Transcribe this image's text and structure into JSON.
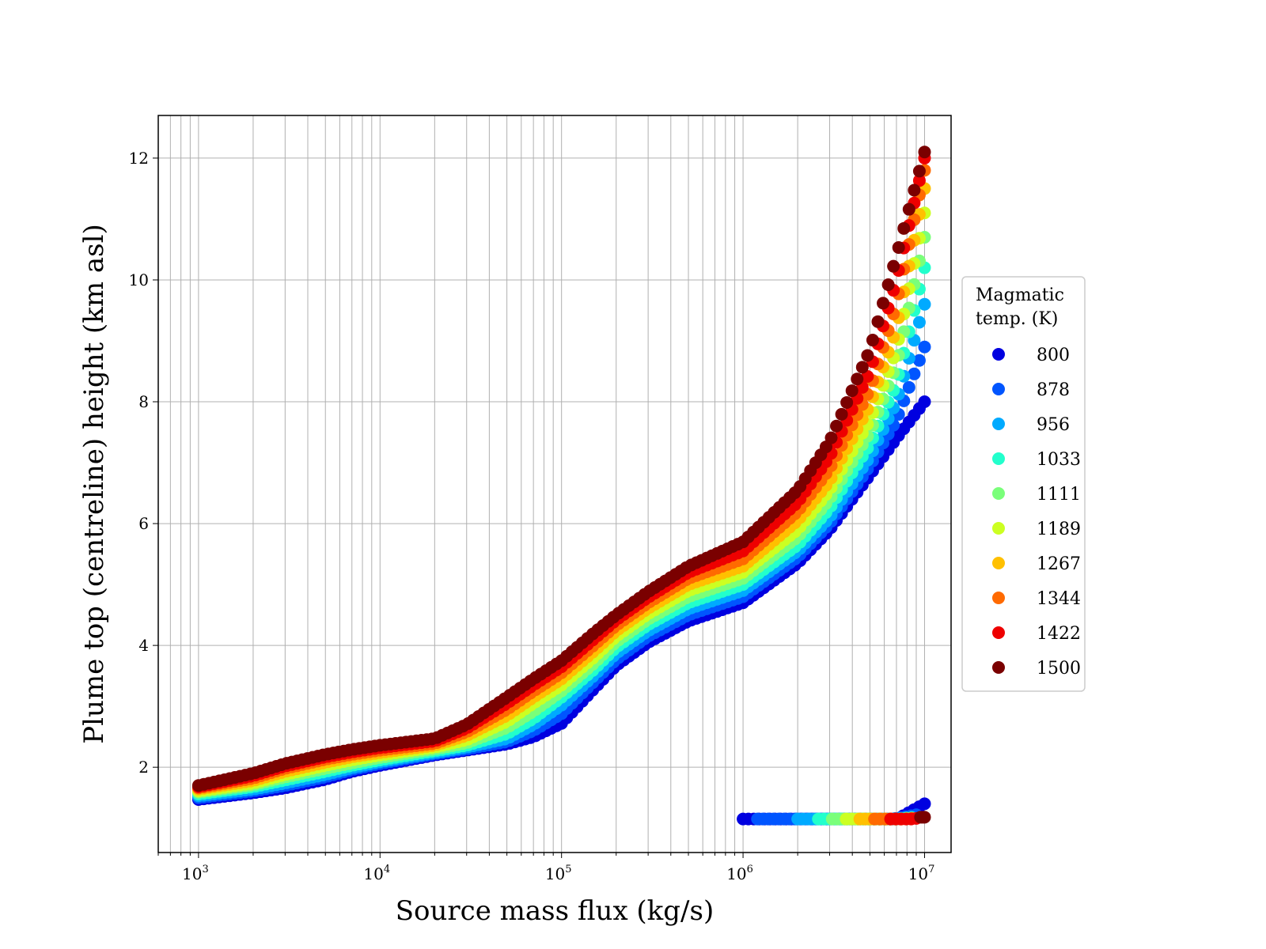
{
  "chart_data": {
    "type": "scatter",
    "title": "",
    "xlabel": "Source mass flux (kg/s)",
    "ylabel": "Plume top (centreline) height (km asl)",
    "xscale": "log",
    "xlim": [
      600,
      14000000
    ],
    "ylim": [
      0.6,
      12.7
    ],
    "grid": "on (major and minor)",
    "x_ticks": [
      {
        "base": "10",
        "exp": "3",
        "value": 1000
      },
      {
        "base": "10",
        "exp": "4",
        "value": 10000
      },
      {
        "base": "10",
        "exp": "5",
        "value": 100000
      },
      {
        "base": "10",
        "exp": "6",
        "value": 1000000
      },
      {
        "base": "10",
        "exp": "7",
        "value": 10000000
      }
    ],
    "y_ticks": [
      {
        "label": "2",
        "value": 2
      },
      {
        "label": "4",
        "value": 4
      },
      {
        "label": "6",
        "value": 6
      },
      {
        "label": "8",
        "value": 8
      },
      {
        "label": "10",
        "value": 10
      },
      {
        "label": "12",
        "value": 12
      }
    ],
    "legend": {
      "title_line1": "Magmatic",
      "title_line2": "temp. (K)",
      "placement": "right, outside plot"
    },
    "series": [
      {
        "name": "800",
        "color": "#0000e0",
        "curve": [
          [
            1000,
            1.47
          ],
          [
            2000,
            1.58
          ],
          [
            3000,
            1.66
          ],
          [
            5000,
            1.8
          ],
          [
            7000,
            1.93
          ],
          [
            10000,
            2.03
          ],
          [
            20000,
            2.2
          ],
          [
            30000,
            2.28
          ],
          [
            50000,
            2.38
          ],
          [
            70000,
            2.5
          ],
          [
            100000,
            2.72
          ],
          [
            150000,
            3.28
          ],
          [
            200000,
            3.67
          ],
          [
            300000,
            4.05
          ],
          [
            500000,
            4.4
          ],
          [
            1000000,
            4.7
          ],
          [
            2000000,
            5.35
          ],
          [
            3000000,
            5.9
          ],
          [
            5000000,
            6.8
          ],
          [
            7000000,
            7.4
          ],
          [
            10000000,
            8.0
          ]
        ],
        "low_branch": {
          "x_start": 1000000,
          "x_end": 10000000,
          "y": 1.15,
          "y_end": 1.4
        }
      },
      {
        "name": "878",
        "color": "#0055ff",
        "curve": [
          [
            1000,
            1.5
          ],
          [
            2000,
            1.61
          ],
          [
            3000,
            1.7
          ],
          [
            5000,
            1.84
          ],
          [
            7000,
            1.96
          ],
          [
            10000,
            2.06
          ],
          [
            20000,
            2.22
          ],
          [
            30000,
            2.3
          ],
          [
            50000,
            2.42
          ],
          [
            70000,
            2.6
          ],
          [
            100000,
            2.88
          ],
          [
            150000,
            3.4
          ],
          [
            200000,
            3.77
          ],
          [
            300000,
            4.15
          ],
          [
            500000,
            4.5
          ],
          [
            1000000,
            4.8
          ],
          [
            2000000,
            5.45
          ],
          [
            3000000,
            6.0
          ],
          [
            5000000,
            6.95
          ],
          [
            7000000,
            7.7
          ],
          [
            10000000,
            8.9
          ]
        ],
        "low_branch": {
          "x_start": 1200000,
          "x_end": 9000000,
          "y": 1.15,
          "y_end": 1.22
        }
      },
      {
        "name": "956",
        "color": "#00aaff",
        "curve": [
          [
            1000,
            1.53
          ],
          [
            2000,
            1.64
          ],
          [
            3000,
            1.74
          ],
          [
            5000,
            1.88
          ],
          [
            7000,
            1.99
          ],
          [
            10000,
            2.09
          ],
          [
            20000,
            2.24
          ],
          [
            30000,
            2.33
          ],
          [
            50000,
            2.47
          ],
          [
            70000,
            2.7
          ],
          [
            100000,
            3.02
          ],
          [
            150000,
            3.5
          ],
          [
            200000,
            3.87
          ],
          [
            300000,
            4.24
          ],
          [
            500000,
            4.6
          ],
          [
            1000000,
            4.9
          ],
          [
            2000000,
            5.55
          ],
          [
            3000000,
            6.1
          ],
          [
            5000000,
            7.1
          ],
          [
            7000000,
            8.0
          ],
          [
            10000000,
            9.6
          ]
        ],
        "low_branch": {
          "x_start": 2000000,
          "x_end": 8500000,
          "y": 1.15,
          "y_end": 1.18
        }
      },
      {
        "name": "1033",
        "color": "#22ffcc",
        "curve": [
          [
            1000,
            1.56
          ],
          [
            2000,
            1.68
          ],
          [
            3000,
            1.79
          ],
          [
            5000,
            1.93
          ],
          [
            7000,
            2.03
          ],
          [
            10000,
            2.12
          ],
          [
            20000,
            2.27
          ],
          [
            30000,
            2.36
          ],
          [
            50000,
            2.55
          ],
          [
            70000,
            2.8
          ],
          [
            100000,
            3.15
          ],
          [
            150000,
            3.6
          ],
          [
            200000,
            3.97
          ],
          [
            300000,
            4.34
          ],
          [
            500000,
            4.7
          ],
          [
            1000000,
            5.0
          ],
          [
            2000000,
            5.65
          ],
          [
            3000000,
            6.25
          ],
          [
            5000000,
            7.3
          ],
          [
            7000000,
            8.3
          ],
          [
            10000000,
            10.2
          ]
        ],
        "low_branch": {
          "x_start": 2600000,
          "x_end": 8500000,
          "y": 1.15,
          "y_end": 1.17
        }
      },
      {
        "name": "1111",
        "color": "#7aff7a",
        "curve": [
          [
            1000,
            1.59
          ],
          [
            2000,
            1.71
          ],
          [
            3000,
            1.84
          ],
          [
            5000,
            1.98
          ],
          [
            7000,
            2.07
          ],
          [
            10000,
            2.16
          ],
          [
            20000,
            2.3
          ],
          [
            30000,
            2.4
          ],
          [
            50000,
            2.65
          ],
          [
            70000,
            2.92
          ],
          [
            100000,
            3.25
          ],
          [
            150000,
            3.7
          ],
          [
            200000,
            4.06
          ],
          [
            300000,
            4.43
          ],
          [
            500000,
            4.8
          ],
          [
            1000000,
            5.1
          ],
          [
            2000000,
            5.78
          ],
          [
            3000000,
            6.4
          ],
          [
            5000000,
            7.5
          ],
          [
            7000000,
            8.6
          ],
          [
            10000000,
            10.7
          ]
        ],
        "low_branch": {
          "x_start": 3100000,
          "x_end": 8500000,
          "y": 1.15,
          "y_end": 1.16
        }
      },
      {
        "name": "1189",
        "color": "#ccff22",
        "curve": [
          [
            1000,
            1.61
          ],
          [
            2000,
            1.74
          ],
          [
            3000,
            1.88
          ],
          [
            5000,
            2.03
          ],
          [
            7000,
            2.12
          ],
          [
            10000,
            2.2
          ],
          [
            20000,
            2.33
          ],
          [
            30000,
            2.45
          ],
          [
            50000,
            2.75
          ],
          [
            70000,
            3.05
          ],
          [
            100000,
            3.35
          ],
          [
            150000,
            3.8
          ],
          [
            200000,
            4.15
          ],
          [
            300000,
            4.52
          ],
          [
            500000,
            4.9
          ],
          [
            1000000,
            5.2
          ],
          [
            2000000,
            5.9
          ],
          [
            3000000,
            6.55
          ],
          [
            5000000,
            7.7
          ],
          [
            7000000,
            8.85
          ],
          [
            10000000,
            11.1
          ]
        ],
        "low_branch": {
          "x_start": 3700000,
          "x_end": 8500000,
          "y": 1.15,
          "y_end": 1.16
        }
      },
      {
        "name": "1267",
        "color": "#ffc000",
        "curve": [
          [
            1000,
            1.64
          ],
          [
            2000,
            1.78
          ],
          [
            3000,
            1.93
          ],
          [
            5000,
            2.08
          ],
          [
            7000,
            2.17
          ],
          [
            10000,
            2.24
          ],
          [
            20000,
            2.36
          ],
          [
            30000,
            2.52
          ],
          [
            50000,
            2.85
          ],
          [
            70000,
            3.15
          ],
          [
            100000,
            3.45
          ],
          [
            150000,
            3.9
          ],
          [
            200000,
            4.24
          ],
          [
            300000,
            4.61
          ],
          [
            500000,
            5.0
          ],
          [
            1000000,
            5.3
          ],
          [
            2000000,
            6.05
          ],
          [
            3000000,
            6.7
          ],
          [
            5000000,
            7.95
          ],
          [
            7000000,
            9.2
          ],
          [
            10000000,
            11.5
          ]
        ],
        "low_branch": {
          "x_start": 4400000,
          "x_end": 8500000,
          "y": 1.15,
          "y_end": 1.16
        }
      },
      {
        "name": "1344",
        "color": "#ff6a00",
        "curve": [
          [
            1000,
            1.66
          ],
          [
            2000,
            1.82
          ],
          [
            3000,
            1.98
          ],
          [
            5000,
            2.13
          ],
          [
            7000,
            2.21
          ],
          [
            10000,
            2.28
          ],
          [
            20000,
            2.39
          ],
          [
            30000,
            2.58
          ],
          [
            50000,
            2.95
          ],
          [
            70000,
            3.25
          ],
          [
            100000,
            3.55
          ],
          [
            150000,
            4.0
          ],
          [
            200000,
            4.33
          ],
          [
            300000,
            4.7
          ],
          [
            500000,
            5.1
          ],
          [
            1000000,
            5.42
          ],
          [
            2000000,
            6.2
          ],
          [
            3000000,
            6.9
          ],
          [
            5000000,
            8.2
          ],
          [
            7000000,
            9.6
          ],
          [
            10000000,
            11.8
          ]
        ],
        "low_branch": {
          "x_start": 5300000,
          "x_end": 8500000,
          "y": 1.15,
          "y_end": 1.16
        }
      },
      {
        "name": "1422",
        "color": "#ee0000",
        "curve": [
          [
            1000,
            1.68
          ],
          [
            2000,
            1.86
          ],
          [
            3000,
            2.02
          ],
          [
            5000,
            2.17
          ],
          [
            7000,
            2.25
          ],
          [
            10000,
            2.32
          ],
          [
            20000,
            2.43
          ],
          [
            30000,
            2.64
          ],
          [
            50000,
            3.05
          ],
          [
            70000,
            3.35
          ],
          [
            100000,
            3.65
          ],
          [
            150000,
            4.1
          ],
          [
            200000,
            4.42
          ],
          [
            300000,
            4.79
          ],
          [
            500000,
            5.2
          ],
          [
            1000000,
            5.55
          ],
          [
            2000000,
            6.35
          ],
          [
            3000000,
            7.1
          ],
          [
            5000000,
            8.5
          ],
          [
            7000000,
            10.0
          ],
          [
            10000000,
            12.0
          ]
        ],
        "low_branch": {
          "x_start": 6500000,
          "x_end": 9000000,
          "y": 1.15,
          "y_end": 1.16
        }
      },
      {
        "name": "1500",
        "color": "#7a0000",
        "curve": [
          [
            1000,
            1.7
          ],
          [
            2000,
            1.9
          ],
          [
            3000,
            2.06
          ],
          [
            5000,
            2.21
          ],
          [
            7000,
            2.29
          ],
          [
            10000,
            2.36
          ],
          [
            20000,
            2.47
          ],
          [
            30000,
            2.7
          ],
          [
            50000,
            3.15
          ],
          [
            70000,
            3.45
          ],
          [
            100000,
            3.75
          ],
          [
            150000,
            4.2
          ],
          [
            200000,
            4.5
          ],
          [
            300000,
            4.88
          ],
          [
            500000,
            5.3
          ],
          [
            1000000,
            5.7
          ],
          [
            2000000,
            6.55
          ],
          [
            3000000,
            7.35
          ],
          [
            5000000,
            8.85
          ],
          [
            7000000,
            10.4
          ],
          [
            10000000,
            12.1
          ]
        ],
        "low_branch": {
          "x_start": 9500000,
          "x_end": 10000000,
          "y": 1.18,
          "y_end": 1.18
        }
      }
    ]
  }
}
